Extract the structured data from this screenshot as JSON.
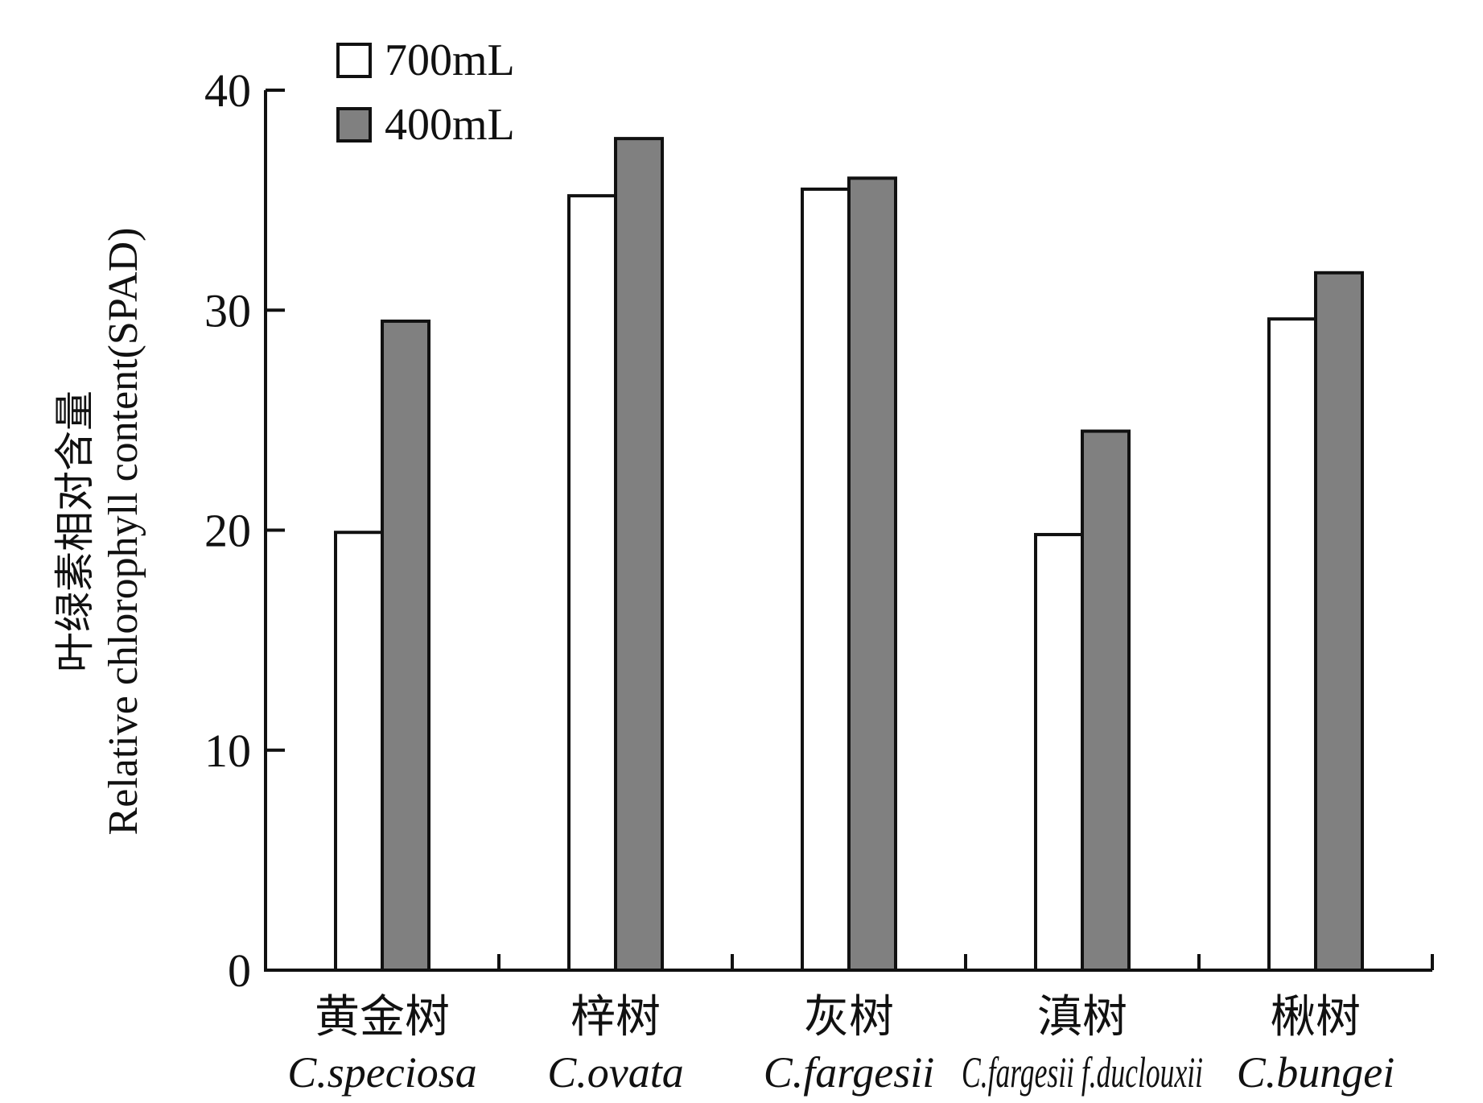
{
  "chart_data": {
    "type": "bar",
    "categories": [
      {
        "cn": "黄金树",
        "latin": "C.speciosa"
      },
      {
        "cn": "梓树",
        "latin": "C.ovata"
      },
      {
        "cn": "灰树",
        "latin": "C.fargesii"
      },
      {
        "cn": "滇树",
        "latin": "C.fargesii f.duclouxii"
      },
      {
        "cn": "楸树",
        "latin": "C.bungei"
      }
    ],
    "series": [
      {
        "name": "700mL",
        "color": "#ffffff",
        "values": [
          19.9,
          35.2,
          35.5,
          19.8,
          29.6
        ]
      },
      {
        "name": "400mL",
        "color": "#808080",
        "values": [
          29.5,
          37.8,
          36.0,
          24.5,
          31.7
        ]
      }
    ],
    "ylabel_cn": "叶绿素相对含量",
    "ylabel": "Relative chlorophyll content(SPAD)",
    "ylim": [
      0,
      40
    ],
    "yticks": [
      "0",
      "10",
      "20",
      "30",
      "40"
    ],
    "legend_position": "top-left",
    "grid": false
  }
}
